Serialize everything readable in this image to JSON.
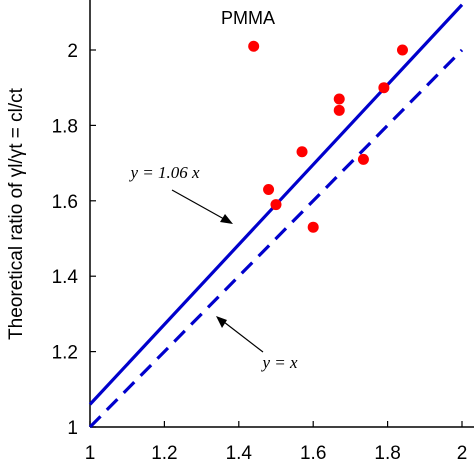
{
  "chart_data": {
    "type": "scatter",
    "title": "",
    "xlabel": "",
    "ylabel": "Theoretical ratio of γl/γt = cl/ct",
    "xlim": [
      1,
      2
    ],
    "ylim": [
      1,
      2.14
    ],
    "xticks": [
      "1",
      "1.2",
      "1.4",
      "1.6",
      "1.8",
      "2"
    ],
    "yticks": [
      "1",
      "1.2",
      "1.4",
      "1.6",
      "1.8",
      "2"
    ],
    "colors": {
      "points": "#ff0000",
      "lines": "#0000cc"
    },
    "points": [
      {
        "x": 1.44,
        "y": 2.01
      },
      {
        "x": 1.48,
        "y": 1.63
      },
      {
        "x": 1.5,
        "y": 1.59
      },
      {
        "x": 1.57,
        "y": 1.73
      },
      {
        "x": 1.6,
        "y": 1.53
      },
      {
        "x": 1.67,
        "y": 1.87
      },
      {
        "x": 1.67,
        "y": 1.84
      },
      {
        "x": 1.735,
        "y": 1.71
      },
      {
        "x": 1.79,
        "y": 1.9
      },
      {
        "x": 1.84,
        "y": 2.0
      }
    ],
    "lines": [
      {
        "slope": 1.06,
        "style": "solid",
        "label": "y = 1.06 x"
      },
      {
        "slope": 1.0,
        "style": "dashed",
        "label": "y = x"
      }
    ],
    "annotations": [
      "PMMA"
    ]
  }
}
